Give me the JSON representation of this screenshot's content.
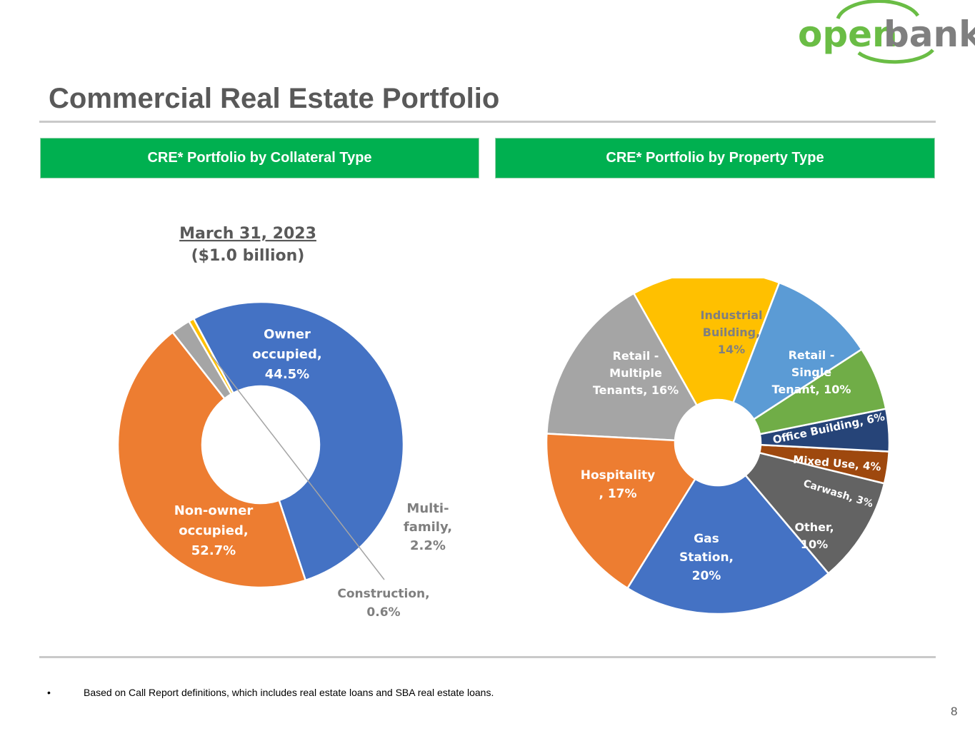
{
  "logo": {
    "part1": "open",
    "part2": "bank"
  },
  "page": {
    "title": "Commercial Real Estate Portfolio",
    "number": "8"
  },
  "panels": {
    "left_header": "CRE* Portfolio by Collateral Type",
    "right_header": "CRE* Portfolio by Property Type"
  },
  "footnote": {
    "bullet": "•",
    "text": "Based on Call Report definitions, which includes real estate loans and SBA real estate loans."
  },
  "colors": {
    "brand_green": "#00b050",
    "logo_green": "#6abd45",
    "logo_gray": "#7f7f7f",
    "title_gray": "#595959"
  },
  "chart_data": [
    {
      "type": "pie",
      "style": "donut",
      "title": "March 31, 2023",
      "subtitle": "($1.0 billion)",
      "start_angle_deg": 118,
      "direction": "clockwise",
      "slices": [
        {
          "label": "Non-owner occupied",
          "value": 52.7,
          "display": "52.7%",
          "color": "#4472c4"
        },
        {
          "label": "Owner occupied",
          "value": 44.5,
          "display": "44.5%",
          "color": "#ed7d31"
        },
        {
          "label": "Multi-family",
          "value": 2.2,
          "display": "2.2%",
          "color": "#a5a5a5"
        },
        {
          "label": "Construction",
          "value": 0.6,
          "display": "0.6%",
          "color": "#ffc000"
        }
      ],
      "label_lines": [
        [
          "Non-owner",
          "occupied,",
          "52.7%"
        ],
        [
          "Owner",
          "occupied,",
          "44.5%"
        ],
        [
          "Multi-",
          "family,",
          "2.2%"
        ],
        [
          "Construction,",
          "0.6%"
        ]
      ]
    },
    {
      "type": "pie",
      "style": "donut",
      "start_angle_deg": 69,
      "direction": "counterclockwise",
      "slices": [
        {
          "label": "Industrial Building",
          "value": 14,
          "display": "14%",
          "color": "#ffc000"
        },
        {
          "label": "Retail - Multiple Tenants",
          "value": 16,
          "display": "16%",
          "color": "#a5a5a5"
        },
        {
          "label": "Hospitality",
          "value": 17,
          "display": "17%",
          "color": "#ed7d31"
        },
        {
          "label": "Gas Station",
          "value": 20,
          "display": "20%",
          "color": "#4472c4"
        },
        {
          "label": "Other",
          "value": 10,
          "display": "10%",
          "color": "#636363"
        },
        {
          "label": "Carwash",
          "value": 3,
          "display": "3%",
          "color": "#9e480e"
        },
        {
          "label": "Mixed Use",
          "value": 4,
          "display": "4%",
          "color": "#264478"
        },
        {
          "label": "Office Building",
          "value": 6,
          "display": "6%",
          "color": "#70ad47"
        },
        {
          "label": "Retail - Single Tenant",
          "value": 10,
          "display": "10%",
          "color": "#5b9bd5"
        }
      ],
      "label_lines": [
        [
          "Industrial",
          "Building,",
          "14%"
        ],
        [
          "Retail -",
          "Multiple",
          "Tenants, 16%"
        ],
        [
          "Hospitality",
          ", 17%"
        ],
        [
          "Gas",
          "Station,",
          "20%"
        ],
        [
          "Other,",
          "10%"
        ],
        [
          "Carwash, 3%"
        ],
        [
          "Mixed Use, 4%"
        ],
        [
          "Office Building, 6%"
        ],
        [
          "Retail -",
          "Single",
          "Tenant, 10%"
        ]
      ]
    }
  ]
}
